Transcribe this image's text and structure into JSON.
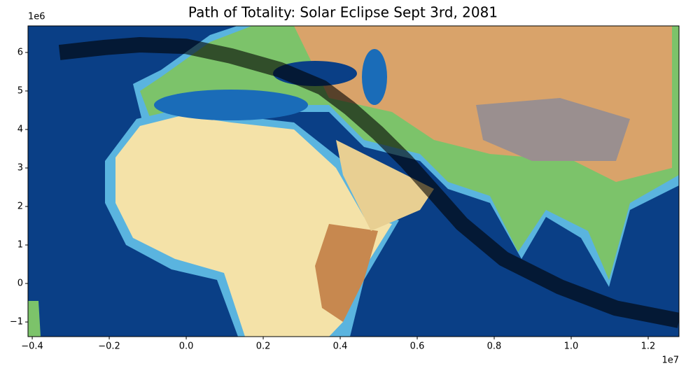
{
  "chart_data": {
    "type": "path",
    "title": "Path of Totality: Solar Eclipse Sept 3rd, 2081",
    "x_offset_label": "1e7",
    "y_offset_label": "1e6",
    "xlim": [
      -4110000,
      12800000
    ],
    "ylim": [
      -1380000,
      6690000
    ],
    "xticks": [
      {
        "value": -4000000,
        "label": "−0.4"
      },
      {
        "value": -2000000,
        "label": "−0.2"
      },
      {
        "value": 0,
        "label": "0.0"
      },
      {
        "value": 2000000,
        "label": "0.2"
      },
      {
        "value": 4000000,
        "label": "0.4"
      },
      {
        "value": 6000000,
        "label": "0.6"
      },
      {
        "value": 8000000,
        "label": "0.8"
      },
      {
        "value": 10000000,
        "label": "1.0"
      },
      {
        "value": 12000000,
        "label": "1.2"
      }
    ],
    "yticks": [
      {
        "value": -1000000,
        "label": "−1"
      },
      {
        "value": 0,
        "label": "0"
      },
      {
        "value": 1000000,
        "label": "1"
      },
      {
        "value": 2000000,
        "label": "2"
      },
      {
        "value": 3000000,
        "label": "3"
      },
      {
        "value": 4000000,
        "label": "4"
      },
      {
        "value": 5000000,
        "label": "5"
      },
      {
        "value": 6000000,
        "label": "6"
      }
    ],
    "color": "#000000",
    "x": [
      -3290000,
      -2110000,
      -1200000,
      0,
      1160000,
      2440000,
      3530000,
      4250000,
      4980000,
      5710000,
      6440000,
      7160000,
      8250000,
      9710000,
      11160000,
      12800000
    ],
    "values": [
      6000000,
      6130000,
      6200000,
      6160000,
      5910000,
      5550000,
      5090000,
      4550000,
      3910000,
      3180000,
      2360000,
      1550000,
      640000,
      -90000,
      -640000,
      -960000
    ]
  }
}
